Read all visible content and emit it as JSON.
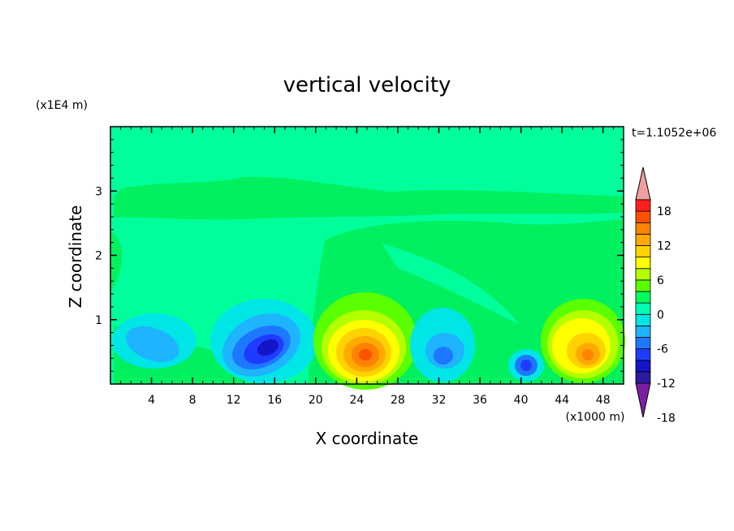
{
  "chart_data": {
    "type": "heatmap",
    "title": "vertical velocity",
    "time_label": "t=1.1052e+06",
    "xlabel": "X coordinate",
    "ylabel": "Z coordinate",
    "x_unit": "(x1000 m)",
    "y_unit": "(x1E4 m)",
    "xlim": [
      0,
      50
    ],
    "ylim": [
      0,
      4
    ],
    "x_ticks": [
      "4",
      "8",
      "12",
      "16",
      "20",
      "24",
      "28",
      "32",
      "36",
      "40",
      "44",
      "48"
    ],
    "y_ticks": [
      "1",
      "2",
      "3"
    ],
    "colorbar": {
      "labels": [
        "18",
        "12",
        "6",
        "0",
        "-6",
        "-12",
        "-18"
      ],
      "colors": [
        "#7b1fa2",
        "#2a1aa0",
        "#1414c8",
        "#1e3cff",
        "#1e78ff",
        "#1eb4ff",
        "#00e6e6",
        "#00ffb4",
        "#00ff5a",
        "#5aff00",
        "#b4ff00",
        "#ffff00",
        "#ffd200",
        "#ffaa00",
        "#ff8200",
        "#ff5000",
        "#ff1e1e",
        "#f0a0a0"
      ]
    },
    "features": [
      {
        "x": 5.5,
        "z": 0.6,
        "rx": 3.0,
        "rz": 0.3,
        "value": -8
      },
      {
        "x": 15.5,
        "z": 0.55,
        "rx": 3.6,
        "rz": 0.5,
        "value": -16
      },
      {
        "x": 25,
        "z": 0.45,
        "rx": 3.8,
        "rz": 0.65,
        "value": 14
      },
      {
        "x": 32.5,
        "z": 0.4,
        "rx": 2.2,
        "rz": 0.45,
        "value": -12
      },
      {
        "x": 40.5,
        "z": 0.28,
        "rx": 1.2,
        "rz": 0.25,
        "value": -13
      },
      {
        "x": 46.5,
        "z": 0.5,
        "rx": 3.2,
        "rz": 0.6,
        "value": 13
      }
    ]
  }
}
